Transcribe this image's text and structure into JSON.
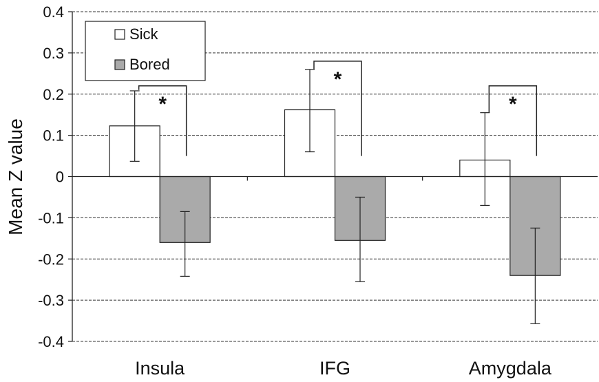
{
  "chart_data": {
    "type": "bar",
    "categories": [
      "Insula",
      "IFG",
      "Amygdala"
    ],
    "series": [
      {
        "name": "Sick",
        "color": "#ffffff",
        "values": [
          0.123,
          0.162,
          0.04
        ],
        "error_low": [
          0.037,
          0.06,
          -0.07
        ],
        "error_high": [
          0.208,
          0.26,
          0.155
        ]
      },
      {
        "name": "Bored",
        "color": "#aaaaaa",
        "values": [
          -0.16,
          -0.155,
          -0.24
        ],
        "error_low": [
          -0.242,
          -0.255,
          -0.357
        ],
        "error_high": [
          -0.085,
          -0.05,
          -0.125
        ]
      }
    ],
    "ylabel": "Mean Z value",
    "xlabel": "",
    "ylim": [
      -0.4,
      0.4
    ],
    "yticks": [
      "0.4",
      "0.3",
      "0.2",
      "0.1",
      "0",
      "-0.1",
      "-0.2",
      "-0.3",
      "-0.4"
    ],
    "ytick_values": [
      0.4,
      0.3,
      0.2,
      0.1,
      0,
      -0.1,
      -0.2,
      -0.3,
      -0.4
    ],
    "grid": "dashed horizontal",
    "legend_position": "top-left",
    "significance": [
      {
        "category_index": 0,
        "label": "*",
        "top": 0.22,
        "left_end": 0.21,
        "right_end": 0.05
      },
      {
        "category_index": 1,
        "label": "*",
        "top": 0.28,
        "left_end": 0.26,
        "right_end": 0.05
      },
      {
        "category_index": 2,
        "label": "*",
        "top": 0.22,
        "left_end": 0.155,
        "right_end": 0.05
      }
    ]
  }
}
